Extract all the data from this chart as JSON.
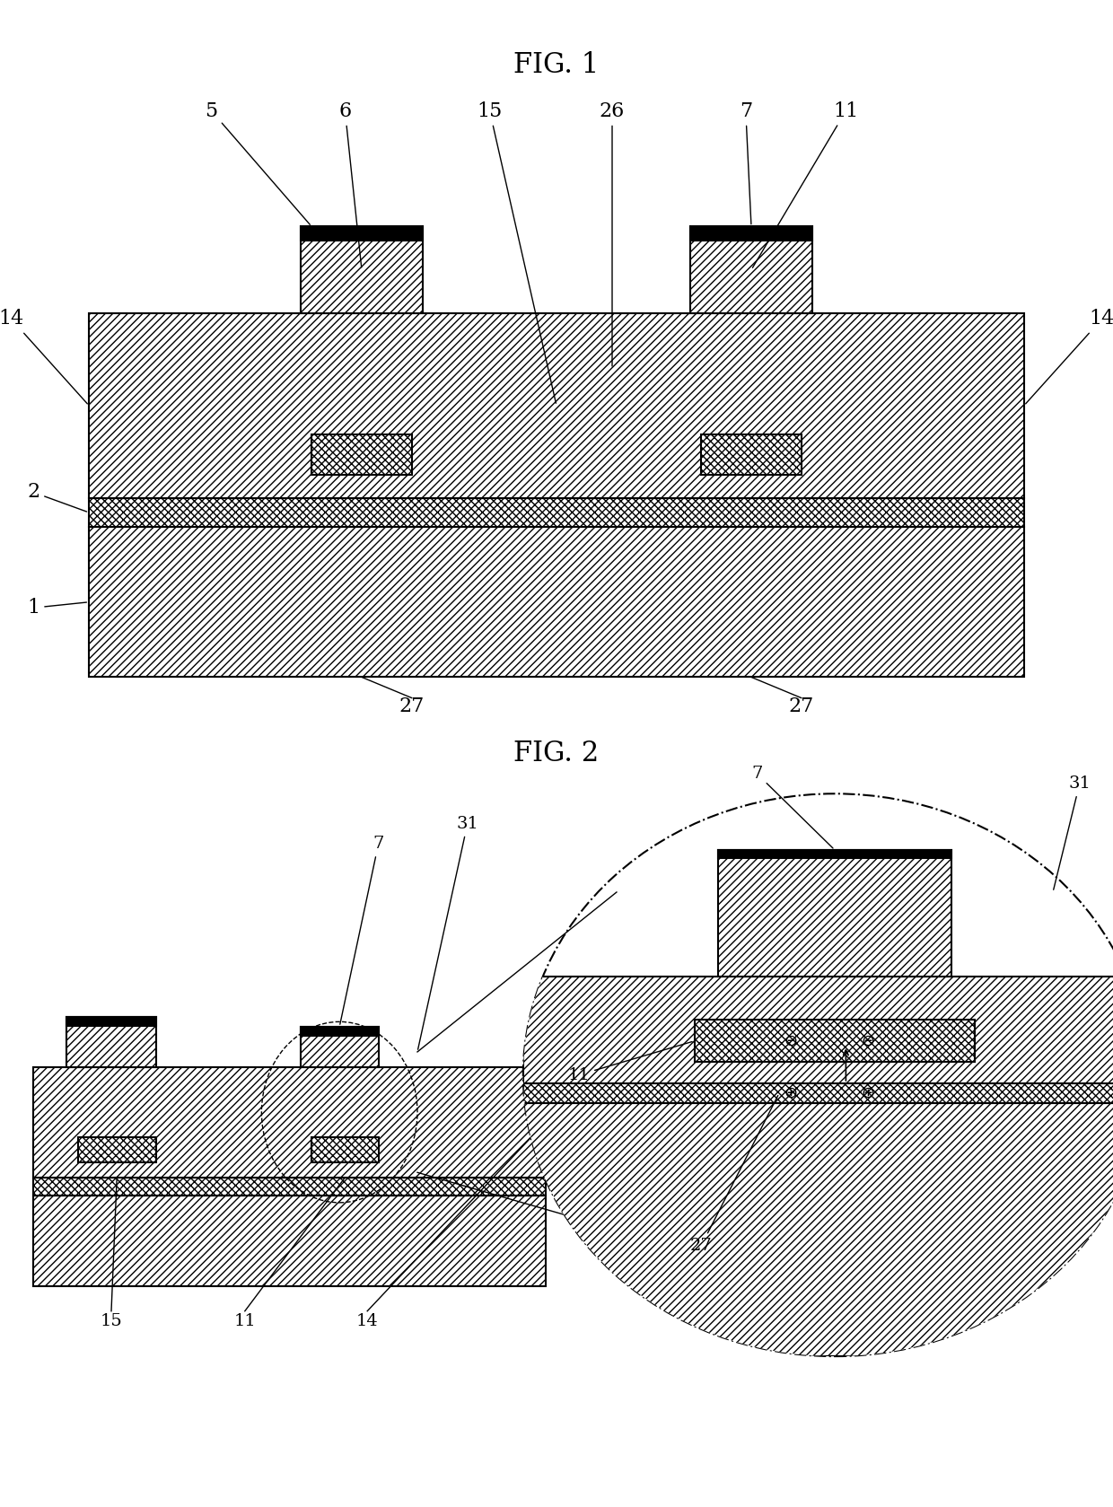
{
  "fig1_title": "FIG. 1",
  "fig2_title": "FIG. 2",
  "bg_color": "#ffffff",
  "lc": "#000000",
  "lw": 1.5,
  "lw_thin": 1.0,
  "label_fs": 16,
  "title_fs": 22,
  "hatch_dense": "////",
  "hatch_cross": "xxxx",
  "hatch_back": "\\\\\\\\"
}
